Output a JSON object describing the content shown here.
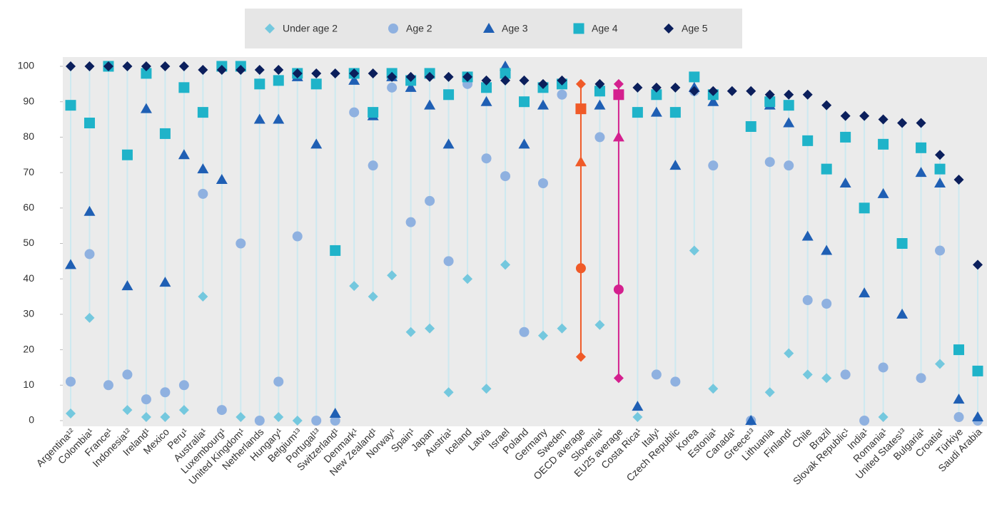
{
  "chart_data": {
    "type": "dot",
    "categories": [
      "Argentina¹²",
      "Colombia¹",
      "France¹",
      "Indonesia¹²",
      "Ireland¹",
      "Mexico",
      "Peru¹",
      "Australia¹",
      "Luxembourg¹",
      "United Kingdom¹",
      "Netherlands",
      "Hungary¹",
      "Belgium¹³",
      "Portugal¹³",
      "Switzerland¹",
      "Denmark¹",
      "New Zealand¹",
      "Norway¹",
      "Spain¹",
      "Japan",
      "Austria¹",
      "Iceland",
      "Latvia",
      "Israel",
      "Poland",
      "Germany",
      "Sweden",
      "OECD average",
      "Slovenia¹",
      "EU25 average",
      "Costa Rica¹",
      "Italy¹",
      "Czech Republic",
      "Korea",
      "Estonia¹",
      "Canada¹",
      "Greece¹³",
      "Lithuania",
      "Finland¹",
      "Chile",
      "Brazil",
      "Slovak Republic¹",
      "India¹",
      "Romania¹",
      "United States¹³",
      "Bulgaria¹",
      "Croatia¹",
      "Türkiye",
      "Saudi Arabia"
    ],
    "series": [
      {
        "name": "Under age 2",
        "color": "#74c8de",
        "marker": "diamond",
        "values": [
          2,
          29,
          null,
          3,
          1,
          1,
          3,
          35,
          null,
          1,
          null,
          1,
          0,
          null,
          null,
          38,
          35,
          41,
          25,
          26,
          8,
          40,
          9,
          44,
          null,
          24,
          26,
          18,
          27,
          12,
          1,
          null,
          null,
          48,
          9,
          null,
          null,
          8,
          19,
          13,
          12,
          null,
          null,
          1,
          null,
          null,
          16,
          null,
          null
        ]
      },
      {
        "name": "Age 2",
        "color": "#8fb1e0",
        "marker": "circle",
        "values": [
          11,
          47,
          10,
          13,
          6,
          8,
          10,
          64,
          3,
          50,
          0,
          11,
          52,
          0,
          0,
          87,
          72,
          94,
          56,
          62,
          45,
          95,
          74,
          69,
          25,
          67,
          92,
          43,
          80,
          37,
          null,
          13,
          11,
          93,
          72,
          null,
          0,
          73,
          72,
          34,
          33,
          13,
          0,
          15,
          null,
          12,
          48,
          1,
          0
        ]
      },
      {
        "name": "Age 3",
        "color": "#1f5fb4",
        "marker": "triangle",
        "values": [
          44,
          59,
          null,
          38,
          88,
          39,
          75,
          71,
          68,
          null,
          85,
          85,
          97,
          78,
          2,
          96,
          86,
          97,
          94,
          89,
          78,
          null,
          90,
          100,
          78,
          89,
          null,
          73,
          89,
          80,
          4,
          87,
          72,
          94,
          90,
          null,
          0,
          89,
          84,
          52,
          48,
          67,
          36,
          64,
          30,
          70,
          67,
          6,
          1
        ]
      },
      {
        "name": "Age 4",
        "color": "#1fb3c9",
        "marker": "square",
        "values": [
          89,
          84,
          100,
          75,
          98,
          81,
          94,
          87,
          100,
          100,
          95,
          96,
          98,
          95,
          48,
          98,
          87,
          98,
          96,
          98,
          92,
          97,
          94,
          98,
          90,
          94,
          95,
          88,
          93,
          92,
          87,
          92,
          87,
          97,
          92,
          null,
          83,
          90,
          89,
          79,
          71,
          80,
          60,
          78,
          50,
          77,
          71,
          20,
          14
        ]
      },
      {
        "name": "Age 5",
        "color": "#0b1f5c",
        "marker": "diamond",
        "values": [
          100,
          100,
          100,
          100,
          100,
          100,
          100,
          99,
          99,
          99,
          99,
          99,
          98,
          98,
          98,
          98,
          98,
          97,
          97,
          97,
          97,
          97,
          96,
          96,
          96,
          95,
          96,
          95,
          95,
          95,
          94,
          94,
          94,
          93,
          93,
          93,
          93,
          92,
          92,
          92,
          89,
          86,
          86,
          85,
          84,
          84,
          75,
          68,
          44
        ]
      }
    ],
    "highlight_colors": [
      null,
      null,
      null,
      null,
      null,
      null,
      null,
      null,
      null,
      null,
      null,
      null,
      null,
      null,
      null,
      null,
      null,
      null,
      null,
      null,
      null,
      null,
      null,
      null,
      null,
      null,
      null,
      "#f05a28",
      null,
      "#d4208e",
      null,
      null,
      null,
      null,
      null,
      null,
      null,
      null,
      null,
      null,
      null,
      null,
      null,
      null,
      null,
      null,
      null,
      null,
      null
    ],
    "ylim": [
      0,
      100
    ],
    "yticks": [
      0,
      10,
      20,
      30,
      40,
      50,
      60,
      70,
      80,
      90,
      100
    ],
    "grid": false,
    "stem_color": "#cde9f0",
    "legend": "top"
  }
}
